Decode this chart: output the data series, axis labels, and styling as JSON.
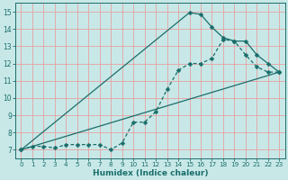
{
  "xlabel": "Humidex (Indice chaleur)",
  "bg_color": "#c8e8e8",
  "line_color": "#1a6e6a",
  "grid_color": "#e8a0a0",
  "xlim": [
    -0.5,
    23.5
  ],
  "ylim": [
    6.5,
    15.5
  ],
  "xticks": [
    0,
    1,
    2,
    3,
    4,
    5,
    6,
    7,
    8,
    9,
    10,
    11,
    12,
    13,
    14,
    15,
    16,
    17,
    18,
    19,
    20,
    21,
    22,
    23
  ],
  "yticks": [
    7,
    8,
    9,
    10,
    11,
    12,
    13,
    14,
    15
  ],
  "line1_x": [
    0,
    1,
    2,
    3,
    4,
    5,
    6,
    7,
    8,
    9,
    10,
    11,
    12,
    13,
    14,
    15,
    16,
    17,
    18,
    19,
    20,
    21,
    22,
    23
  ],
  "line1_y": [
    7.0,
    7.2,
    7.2,
    7.1,
    7.3,
    7.3,
    7.3,
    7.3,
    7.0,
    7.4,
    8.6,
    8.6,
    9.2,
    10.5,
    11.6,
    12.0,
    12.0,
    12.3,
    13.4,
    13.3,
    12.5,
    11.8,
    11.5,
    11.5
  ],
  "line2_x": [
    0,
    23
  ],
  "line2_y": [
    7.0,
    11.5
  ],
  "line3_x": [
    0,
    15,
    16,
    17,
    18,
    19,
    20,
    21,
    22,
    23
  ],
  "line3_y": [
    7.0,
    14.95,
    14.85,
    14.1,
    13.5,
    13.3,
    13.3,
    12.5,
    12.0,
    11.5
  ],
  "markersize": 2.5,
  "linewidth": 0.9
}
